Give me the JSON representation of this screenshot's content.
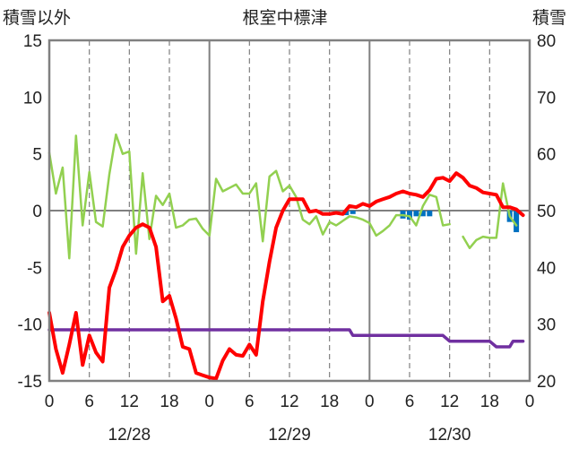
{
  "chart_data": {
    "type": "line",
    "title": "根室中標津",
    "left_axis_label": "積雪以外",
    "right_axis_label": "積雪",
    "left_ylim": [
      -15,
      15
    ],
    "left_yticks": [
      15,
      10,
      5,
      0,
      -5,
      -10,
      -15
    ],
    "right_ylim": [
      20,
      80
    ],
    "right_yticks": [
      80,
      70,
      60,
      50,
      40,
      30,
      20
    ],
    "x_range_hours": [
      0,
      72
    ],
    "x_tick_hours": [
      0,
      6,
      12,
      18,
      24,
      30,
      36,
      42,
      48,
      54,
      60,
      66,
      72
    ],
    "x_tick_labels": [
      "0",
      "6",
      "12",
      "18",
      "0",
      "6",
      "12",
      "18",
      "0",
      "6",
      "12",
      "18",
      "0"
    ],
    "date_labels": [
      {
        "label": "12/28",
        "hour": 12
      },
      {
        "label": "12/29",
        "hour": 36
      },
      {
        "label": "12/30",
        "hour": 60
      }
    ],
    "grid": "dashed vertical lines every 12 hours; solid at day boundaries; horizontal zero line",
    "colors": {
      "temperature": "#ff0000",
      "wind": "#92d050",
      "snow_depth": "#7030a0",
      "precipitation": "#0070c0",
      "axis": "#808080",
      "grid": "#808080"
    },
    "series": [
      {
        "color_key": "temperature",
        "axis": "left",
        "points": [
          [
            0,
            -9.0
          ],
          [
            1,
            -12.2
          ],
          [
            2,
            -14.3
          ],
          [
            3,
            -11.8
          ],
          [
            4,
            -9.0
          ],
          [
            5,
            -13.6
          ],
          [
            6,
            -11.0
          ],
          [
            7,
            -12.5
          ],
          [
            8,
            -13.3
          ],
          [
            9,
            -6.8
          ],
          [
            10,
            -5.2
          ],
          [
            11,
            -3.2
          ],
          [
            12,
            -2.2
          ],
          [
            13,
            -1.5
          ],
          [
            14,
            -1.2
          ],
          [
            15,
            -1.5
          ],
          [
            16,
            -3.2
          ],
          [
            17,
            -8.0
          ],
          [
            18,
            -7.5
          ],
          [
            19,
            -9.5
          ],
          [
            20,
            -12.0
          ],
          [
            21,
            -12.2
          ],
          [
            22,
            -14.3
          ],
          [
            23,
            -14.5
          ],
          [
            24,
            -14.7
          ],
          [
            25,
            -14.8
          ],
          [
            26,
            -13.2
          ],
          [
            27,
            -12.2
          ],
          [
            28,
            -12.7
          ],
          [
            29,
            -12.8
          ],
          [
            30,
            -11.8
          ],
          [
            31,
            -12.7
          ],
          [
            32,
            -8.0
          ],
          [
            33,
            -4.5
          ],
          [
            34,
            -1.5
          ],
          [
            35,
            0.0
          ],
          [
            36,
            1.0
          ],
          [
            37,
            1.0
          ],
          [
            38,
            1.0
          ],
          [
            39,
            -0.1
          ],
          [
            40,
            0.0
          ],
          [
            41,
            -0.3
          ],
          [
            42,
            -0.3
          ],
          [
            43,
            -0.2
          ],
          [
            44,
            -0.3
          ],
          [
            45,
            0.4
          ],
          [
            46,
            0.3
          ],
          [
            47,
            0.6
          ],
          [
            48,
            0.4
          ],
          [
            49,
            0.8
          ],
          [
            50,
            1.0
          ],
          [
            51,
            1.2
          ],
          [
            52,
            1.5
          ],
          [
            53,
            1.7
          ],
          [
            54,
            1.5
          ],
          [
            55,
            1.4
          ],
          [
            56,
            1.2
          ],
          [
            57,
            1.8
          ],
          [
            58,
            2.8
          ],
          [
            59,
            2.9
          ],
          [
            60,
            2.6
          ],
          [
            61,
            3.3
          ],
          [
            62,
            2.9
          ],
          [
            63,
            2.2
          ],
          [
            64,
            2.0
          ],
          [
            65,
            1.6
          ],
          [
            66,
            1.5
          ],
          [
            67,
            1.4
          ],
          [
            68,
            0.3
          ],
          [
            69,
            0.3
          ],
          [
            70,
            0.1
          ],
          [
            71,
            -0.4
          ]
        ]
      },
      {
        "color_key": "wind",
        "axis": "left",
        "points": [
          [
            0,
            5.1
          ],
          [
            1,
            1.5
          ],
          [
            2,
            3.8
          ],
          [
            3,
            -4.2
          ],
          [
            4,
            6.6
          ],
          [
            5,
            -1.3
          ],
          [
            6,
            3.4
          ],
          [
            7,
            -1.0
          ],
          [
            8,
            -1.4
          ],
          [
            9,
            3.2
          ],
          [
            10,
            6.7
          ],
          [
            11,
            5.0
          ],
          [
            12,
            5.2
          ],
          [
            13,
            -3.8
          ],
          [
            14,
            3.3
          ],
          [
            15,
            -2.5
          ],
          [
            16,
            1.3
          ],
          [
            17,
            0.5
          ],
          [
            18,
            1.5
          ],
          [
            19,
            -1.5
          ],
          [
            20,
            -1.3
          ],
          [
            21,
            -0.8
          ],
          [
            22,
            -0.7
          ],
          [
            23,
            -1.6
          ],
          [
            24,
            -2.2
          ],
          [
            25,
            2.8
          ],
          [
            26,
            1.7
          ],
          [
            27,
            2.0
          ],
          [
            28,
            2.3
          ],
          [
            29,
            1.5
          ],
          [
            30,
            1.5
          ],
          [
            31,
            2.4
          ],
          [
            32,
            -2.7
          ],
          [
            33,
            3.0
          ],
          [
            34,
            3.5
          ],
          [
            35,
            1.7
          ],
          [
            36,
            2.2
          ],
          [
            37,
            1.2
          ],
          [
            38,
            -0.8
          ],
          [
            39,
            -1.2
          ],
          [
            40,
            -0.5
          ],
          [
            41,
            -2.1
          ],
          [
            42,
            -1.0
          ],
          [
            43,
            -1.3
          ],
          [
            44,
            -0.9
          ],
          [
            45,
            -0.5
          ],
          [
            46,
            -0.6
          ],
          [
            47,
            -0.8
          ],
          [
            48,
            -1.1
          ],
          [
            49,
            -2.2
          ],
          [
            50,
            -1.8
          ],
          [
            51,
            -1.3
          ],
          [
            52,
            -0.4
          ],
          [
            53,
            -0.4
          ],
          [
            54,
            -0.5
          ],
          [
            55,
            -1.3
          ],
          [
            56,
            0.4
          ],
          [
            57,
            1.4
          ],
          [
            58,
            1.2
          ],
          [
            59,
            -1.3
          ],
          [
            60,
            -1.2
          ],
          null,
          [
            62,
            -2.3
          ],
          [
            63,
            -3.3
          ],
          [
            64,
            -2.6
          ],
          [
            65,
            -2.3
          ],
          [
            66,
            -2.4
          ],
          [
            67,
            -2.4
          ],
          [
            68,
            2.4
          ],
          [
            69,
            -0.5
          ],
          [
            70,
            -1.3
          ]
        ]
      },
      {
        "color_key": "snow_depth",
        "axis": "right",
        "points": [
          [
            0,
            29
          ],
          [
            45,
            29
          ],
          [
            45.5,
            28
          ],
          [
            59,
            28
          ],
          [
            60,
            27
          ],
          [
            66,
            27
          ],
          [
            67,
            26
          ],
          [
            69,
            26
          ],
          [
            69.5,
            27
          ],
          [
            71,
            27
          ]
        ]
      }
    ],
    "bars": {
      "color_key": "precipitation",
      "axis": "left",
      "bars": [
        [
          44.5,
          -0.4
        ],
        [
          45.5,
          -0.3
        ],
        [
          53,
          -0.7
        ],
        [
          54,
          -0.8
        ],
        [
          55,
          -0.5
        ],
        [
          56,
          -0.5
        ],
        [
          57,
          -0.5
        ],
        [
          69,
          -1.0
        ],
        [
          70,
          -1.9
        ]
      ]
    }
  }
}
